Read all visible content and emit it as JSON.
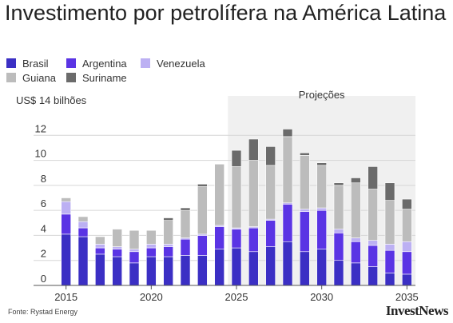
{
  "title": "Investimento por petrolífera na América Latina",
  "source": "Fonte: Rystad Energy",
  "logo": "InvestNews",
  "colors": {
    "Brasil": "#3b2fc4",
    "Argentina": "#5a34e4",
    "Venezuela": "#bcb0f3",
    "Guiana": "#bcbcbc",
    "Suriname": "#6b6b6b",
    "projection_bg": "#f0f0f0"
  },
  "chart_data": {
    "type": "bar",
    "stacked": true,
    "categories": [
      "2015",
      "2016",
      "2017",
      "2018",
      "2019",
      "2020",
      "2021",
      "2022",
      "2023",
      "2024",
      "2025",
      "2026",
      "2027",
      "2028",
      "2029",
      "2030",
      "2031",
      "2032",
      "2033",
      "2034",
      "2035"
    ],
    "series": [
      {
        "name": "Brasil",
        "values": [
          4.1,
          3.9,
          2.5,
          2.3,
          1.8,
          2.3,
          2.3,
          2.4,
          2.4,
          2.9,
          3.0,
          2.7,
          3.1,
          3.5,
          2.7,
          2.9,
          2.0,
          1.8,
          1.5,
          1.0,
          0.9
        ]
      },
      {
        "name": "Argentina",
        "values": [
          1.6,
          0.7,
          0.5,
          0.6,
          0.9,
          0.7,
          0.8,
          1.3,
          1.6,
          1.8,
          1.5,
          1.9,
          2.1,
          3.0,
          3.2,
          3.1,
          2.2,
          1.7,
          1.7,
          1.8,
          1.8
        ]
      },
      {
        "name": "Venezuela",
        "values": [
          1.0,
          0.5,
          0.3,
          0.2,
          0.2,
          0.3,
          0.2,
          0.1,
          0.1,
          0.1,
          0.1,
          0.1,
          0.1,
          0.1,
          0.2,
          0.2,
          0.3,
          0.3,
          0.4,
          0.5,
          0.8
        ]
      },
      {
        "name": "Guiana",
        "values": [
          0.3,
          0.4,
          0.6,
          1.4,
          1.5,
          1.1,
          1.9,
          2.2,
          3.8,
          4.9,
          4.9,
          5.3,
          4.3,
          5.3,
          4.3,
          3.4,
          3.5,
          4.4,
          4.1,
          3.5,
          2.6
        ]
      },
      {
        "name": "Suriname",
        "values": [
          0.0,
          0.0,
          0.0,
          0.0,
          0.0,
          0.0,
          0.2,
          0.2,
          0.2,
          0.0,
          1.3,
          1.7,
          1.5,
          0.6,
          0.2,
          0.2,
          0.2,
          0.4,
          1.8,
          1.4,
          0.8
        ]
      }
    ],
    "xlabel": "",
    "ylabel": "US$ 14 bilhões",
    "ylim": [
      0,
      14
    ],
    "yticks": [
      0,
      2,
      4,
      6,
      8,
      10,
      12
    ],
    "xtick_labels": [
      "2015",
      "2020",
      "2025",
      "2030",
      "2035"
    ],
    "projection_label": "Projeções",
    "projection_start": "2025",
    "legend": [
      "Brasil",
      "Argentina",
      "Venezuela",
      "Guiana",
      "Suriname"
    ],
    "legend_position": "top-left",
    "grid": true
  }
}
